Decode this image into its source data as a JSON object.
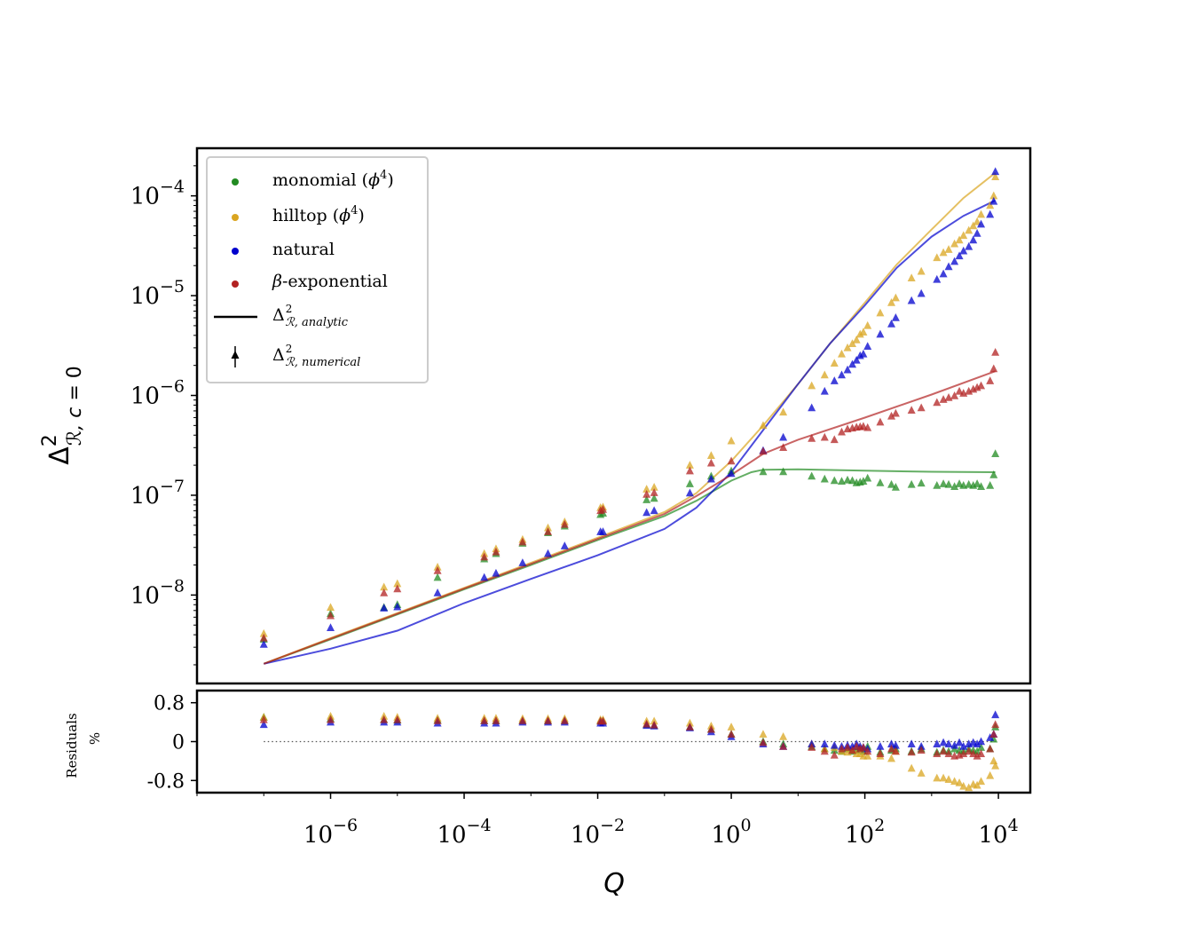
{
  "chart_data": [
    {
      "type": "scatter",
      "subtype": "log-log with analytic curves",
      "xlabel": "Q",
      "ylabel": "Δ²_{R, c=0}",
      "xscale": "log",
      "yscale": "log",
      "xlim": [
        1e-08,
        30000
      ],
      "ylim": [
        1.3e-09,
        0.0003
      ],
      "grid": false,
      "x_ticks": [
        {
          "value": 1e-06,
          "base": "10",
          "exp": "−6"
        },
        {
          "value": 0.0001,
          "base": "10",
          "exp": "−4"
        },
        {
          "value": 0.01,
          "base": "10",
          "exp": "−2"
        },
        {
          "value": 1,
          "base": "10",
          "exp": "0"
        },
        {
          "value": 100,
          "base": "10",
          "exp": "2"
        },
        {
          "value": 10000,
          "base": "10",
          "exp": "4"
        }
      ],
      "y_ticks": [
        {
          "value": 1e-08,
          "base": "10",
          "exp": "−8"
        },
        {
          "value": 1e-07,
          "base": "10",
          "exp": "−7"
        },
        {
          "value": 1e-06,
          "base": "10",
          "exp": "−6"
        },
        {
          "value": 1e-05,
          "base": "10",
          "exp": "−5"
        },
        {
          "value": 0.0001,
          "base": "10",
          "exp": "−4"
        }
      ],
      "legend": {
        "position": "top-left",
        "entries": [
          {
            "label": "monomial (",
            "math": "ϕ",
            "sup": "4",
            "close": ")",
            "marker": "dot",
            "color": "#228b22"
          },
          {
            "label": "hilltop (",
            "math": "ϕ",
            "sup": "4",
            "close": ")",
            "marker": "dot",
            "color": "#daa520"
          },
          {
            "label": "natural",
            "marker": "dot",
            "color": "#0000cd"
          },
          {
            "label": "-exponential",
            "math_prefix": "β",
            "marker": "dot",
            "color": "#b22222"
          },
          {
            "label": "Δ",
            "sup": "2",
            "sub": "ℛ, analytic",
            "marker": "line",
            "color": "#000000"
          },
          {
            "label": "Δ",
            "sup": "2",
            "sub": "ℛ, numerical",
            "marker": "triangle",
            "color": "#000000"
          }
        ]
      },
      "series": [
        {
          "name": "monomial (φ⁴)",
          "color": "#228b22",
          "analytic": {
            "x": [
              1e-07,
              1e-06,
              1e-05,
              0.0001,
              0.001,
              0.01,
              0.1,
              0.3,
              1,
              2,
              3,
              10,
              100,
              1000,
              9000
            ],
            "y": [
              2.05e-09,
              3.6e-09,
              6.4e-09,
              1.14e-08,
              2e-08,
              3.55e-08,
              6.2e-08,
              8.8e-08,
              1.4e-07,
              1.7e-07,
              1.8e-07,
              1.82e-07,
              1.76e-07,
              1.72e-07,
              1.7e-07
            ]
          },
          "numerical": {
            "x": [
              1e-07,
              1e-06,
              6.3e-06,
              1e-05,
              4e-05,
              0.0002,
              0.0003,
              0.00075,
              0.0018,
              0.0032,
              0.011,
              0.012,
              0.054,
              0.07,
              0.24,
              0.5,
              1,
              3,
              6,
              16,
              25,
              35,
              45,
              55,
              65,
              75,
              85,
              95,
              110,
              170,
              250,
              290,
              500,
              700,
              1200,
              1500,
              1800,
              2200,
              2600,
              3000,
              3600,
              4200,
              4800,
              5500,
              7500,
              8500,
              9000
            ],
            "y": [
              3.6e-09,
              6.5e-09,
              7.5e-09,
              8e-09,
              1.5e-08,
              2.3e-08,
              2.6e-08,
              3.3e-08,
              4.2e-08,
              4.9e-08,
              6.4e-08,
              6.6e-08,
              9e-08,
              9.3e-08,
              1.3e-07,
              1.55e-07,
              1.75e-07,
              1.72e-07,
              1.72e-07,
              1.55e-07,
              1.45e-07,
              1.4e-07,
              1.38e-07,
              1.42e-07,
              1.4e-07,
              1.33e-07,
              1.35e-07,
              1.38e-07,
              1.48e-07,
              1.33e-07,
              1.28e-07,
              1.2e-07,
              1.28e-07,
              1.32e-07,
              1.25e-07,
              1.3e-07,
              1.28e-07,
              1.22e-07,
              1.3e-07,
              1.25e-07,
              1.28e-07,
              1.25e-07,
              1.3e-07,
              1.22e-07,
              1.25e-07,
              1.6e-07,
              2.6e-07
            ]
          },
          "residuals_pct": [
            0.5,
            0.47,
            0.45,
            0.44,
            0.44,
            0.43,
            0.43,
            0.43,
            0.43,
            0.43,
            0.42,
            0.42,
            0.35,
            0.33,
            0.3,
            0.25,
            0.15,
            0,
            -0.05,
            -0.1,
            -0.15,
            -0.18,
            -0.2,
            -0.15,
            -0.2,
            -0.18,
            -0.15,
            -0.2,
            -0.1,
            -0.22,
            -0.18,
            -0.15,
            -0.2,
            -0.15,
            -0.22,
            -0.18,
            -0.2,
            -0.15,
            -0.18,
            -0.2,
            -0.15,
            -0.18,
            -0.2,
            -0.12,
            -0.15,
            0.05,
            0.3
          ]
        },
        {
          "name": "hilltop (φ⁴)",
          "color": "#daa520",
          "analytic": {
            "x": [
              1e-07,
              1e-06,
              1e-05,
              0.0001,
              0.001,
              0.01,
              0.1,
              0.3,
              1,
              3,
              10,
              30,
              100,
              300,
              1000,
              3000,
              9000
            ],
            "y": [
              2.05e-09,
              3.7e-09,
              6.6e-09,
              1.18e-08,
              2.1e-08,
              3.75e-08,
              6.8e-08,
              1.05e-07,
              2.2e-07,
              5e-07,
              1.3e-06,
              3.3e-06,
              8.5e-06,
              2.05e-05,
              4.6e-05,
              9.5e-05,
              0.00017
            ]
          },
          "numerical": {
            "x": [
              1e-07,
              1e-06,
              6.3e-06,
              1e-05,
              4e-05,
              0.0002,
              0.0003,
              0.00075,
              0.0018,
              0.0032,
              0.011,
              0.012,
              0.054,
              0.07,
              0.24,
              0.5,
              1,
              3,
              6,
              16,
              25,
              35,
              45,
              55,
              65,
              75,
              85,
              95,
              110,
              170,
              250,
              290,
              500,
              700,
              1200,
              1500,
              1800,
              2200,
              2600,
              3000,
              3600,
              4200,
              4800,
              5500,
              7500,
              8500,
              9000
            ],
            "y": [
              4.1e-09,
              7.5e-09,
              1.2e-08,
              1.3e-08,
              1.9e-08,
              2.6e-08,
              2.9e-08,
              3.6e-08,
              4.7e-08,
              5.4e-08,
              7.5e-08,
              7.6e-08,
              1.15e-07,
              1.2e-07,
              2e-07,
              2.5e-07,
              3.5e-07,
              5e-07,
              6.8e-07,
              1.25e-06,
              1.6e-06,
              2.1e-06,
              2.6e-06,
              3e-06,
              3.3e-06,
              3.6e-06,
              4.1e-06,
              4.3e-06,
              5e-06,
              6.7e-06,
              8.5e-06,
              9.5e-06,
              1.5e-05,
              1.75e-05,
              2.4e-05,
              2.7e-05,
              2.9e-05,
              3.3e-05,
              3.6e-05,
              4e-05,
              4.5e-05,
              5e-05,
              5.5e-05,
              6.5e-05,
              8e-05,
              0.0001,
              0.000155
            ]
          },
          "residuals_pct": [
            0.5,
            0.52,
            0.52,
            0.5,
            0.48,
            0.48,
            0.48,
            0.47,
            0.47,
            0.47,
            0.45,
            0.45,
            0.42,
            0.42,
            0.38,
            0.32,
            0.3,
            0.15,
            0.1,
            -0.05,
            -0.15,
            -0.12,
            -0.2,
            -0.22,
            -0.18,
            -0.25,
            -0.25,
            -0.3,
            -0.3,
            -0.3,
            -0.35,
            -0.2,
            -0.55,
            -0.65,
            -0.75,
            -0.75,
            -0.78,
            -0.82,
            -0.85,
            -0.92,
            -0.95,
            -0.88,
            -0.9,
            -0.82,
            -0.7,
            -0.4,
            -0.5
          ]
        },
        {
          "name": "natural",
          "color": "#0000cd",
          "analytic": {
            "x": [
              1e-07,
              1e-06,
              1e-05,
              0.0001,
              0.001,
              0.01,
              0.1,
              0.3,
              1,
              3,
              10,
              30,
              100,
              300,
              1000,
              3000,
              9000
            ],
            "y": [
              2.05e-09,
              2.9e-09,
              4.4e-09,
              8.3e-09,
              1.45e-08,
              2.5e-08,
              4.6e-08,
              7.5e-08,
              1.7e-07,
              4.5e-07,
              1.3e-06,
              3.3e-06,
              8e-06,
              1.9e-05,
              3.9e-05,
              6.3e-05,
              9e-05
            ]
          },
          "numerical": {
            "x": [
              1e-07,
              1e-06,
              6.3e-06,
              1e-05,
              4e-05,
              0.0002,
              0.0003,
              0.00075,
              0.0018,
              0.0032,
              0.011,
              0.012,
              0.054,
              0.07,
              0.24,
              0.5,
              1,
              3,
              6,
              16,
              25,
              35,
              45,
              55,
              65,
              75,
              85,
              95,
              110,
              170,
              250,
              290,
              500,
              700,
              1200,
              1500,
              1800,
              2200,
              2600,
              3000,
              3600,
              4200,
              4800,
              5500,
              7500,
              8500,
              9000
            ],
            "y": [
              3.2e-09,
              4.7e-09,
              7.4e-09,
              7.6e-09,
              1.05e-08,
              1.5e-08,
              1.65e-08,
              2.1e-08,
              2.6e-08,
              3.1e-08,
              4.3e-08,
              4.3e-08,
              6.7e-08,
              7e-08,
              1.05e-07,
              1.45e-07,
              1.65e-07,
              2.8e-07,
              3.8e-07,
              7.5e-07,
              1.1e-06,
              1.4e-06,
              1.6e-06,
              1.8e-06,
              2.05e-06,
              2.25e-06,
              2.5e-06,
              2.6e-06,
              3.1e-06,
              4.1e-06,
              5.2e-06,
              6e-06,
              8.9e-06,
              1.05e-05,
              1.45e-05,
              1.65e-05,
              1.95e-05,
              2.2e-05,
              2.5e-05,
              2.8e-05,
              3.1e-05,
              3.6e-05,
              4.2e-05,
              5.2e-05,
              6.5e-05,
              8.8e-05,
              0.000175
            ]
          },
          "residuals_pct": [
            0.35,
            0.4,
            0.4,
            0.4,
            0.38,
            0.38,
            0.38,
            0.4,
            0.4,
            0.4,
            0.38,
            0.38,
            0.33,
            0.32,
            0.28,
            0.2,
            0.1,
            -0.05,
            -0.1,
            -0.05,
            -0.05,
            -0.08,
            -0.1,
            -0.08,
            -0.1,
            -0.05,
            -0.1,
            -0.12,
            -0.15,
            -0.1,
            -0.05,
            -0.08,
            -0.05,
            -0.1,
            -0.05,
            -0.02,
            -0.05,
            -0.08,
            -0.02,
            -0.1,
            -0.05,
            -0.02,
            -0.05,
            0,
            0.08,
            0.15,
            0.55
          ]
        },
        {
          "name": "β-exponential",
          "color": "#b22222",
          "analytic": {
            "x": [
              1e-07,
              1e-06,
              1e-05,
              0.0001,
              0.001,
              0.01,
              0.1,
              0.3,
              1,
              3,
              10,
              100,
              1000,
              9000
            ],
            "y": [
              2.05e-09,
              3.65e-09,
              6.5e-09,
              1.16e-08,
              2.05e-08,
              3.65e-08,
              6.5e-08,
              9.8e-08,
              1.6e-07,
              2.6e-07,
              3.6e-07,
              6e-07,
              1.02e-06,
              1.75e-06
            ]
          },
          "numerical": {
            "x": [
              1e-07,
              1e-06,
              6.3e-06,
              1e-05,
              4e-05,
              0.0002,
              0.0003,
              0.00075,
              0.0018,
              0.0032,
              0.011,
              0.012,
              0.054,
              0.07,
              0.24,
              0.5,
              1,
              3,
              6,
              16,
              25,
              35,
              45,
              55,
              65,
              75,
              85,
              95,
              110,
              170,
              250,
              290,
              500,
              700,
              1200,
              1500,
              1800,
              2200,
              2600,
              3000,
              3600,
              4200,
              4800,
              5500,
              7500,
              8500,
              9000
            ],
            "y": [
              3.7e-09,
              6.2e-09,
              1.05e-08,
              1.15e-08,
              1.75e-08,
              2.4e-08,
              2.7e-08,
              3.4e-08,
              4.3e-08,
              5.1e-08,
              7e-08,
              7.2e-08,
              1.02e-07,
              1.06e-07,
              1.75e-07,
              2.1e-07,
              2.2e-07,
              2.75e-07,
              3e-07,
              3.7e-07,
              3.8e-07,
              3.6e-07,
              4.3e-07,
              4.6e-07,
              4.7e-07,
              4.8e-07,
              4.85e-07,
              4.9e-07,
              4.75e-07,
              5.4e-07,
              6.2e-07,
              6.6e-07,
              7.1e-07,
              7.5e-07,
              8.5e-07,
              9.1e-07,
              9.5e-07,
              9.9e-07,
              1.1e-06,
              1.05e-06,
              1.1e-06,
              1.15e-06,
              1.2e-06,
              1.25e-06,
              1.4e-06,
              1.85e-06,
              2.7e-06
            ]
          },
          "residuals_pct": [
            0.45,
            0.45,
            0.45,
            0.45,
            0.43,
            0.43,
            0.43,
            0.43,
            0.43,
            0.43,
            0.42,
            0.42,
            0.36,
            0.34,
            0.3,
            0.25,
            0.15,
            -0.02,
            -0.1,
            -0.12,
            -0.2,
            -0.28,
            -0.15,
            -0.12,
            -0.18,
            -0.1,
            -0.15,
            -0.12,
            -0.2,
            -0.25,
            -0.15,
            -0.2,
            -0.22,
            -0.18,
            -0.25,
            -0.2,
            -0.25,
            -0.3,
            -0.28,
            -0.25,
            -0.2,
            -0.25,
            -0.3,
            -0.25,
            -0.15,
            0.15,
            0.35
          ]
        }
      ]
    },
    {
      "type": "scatter",
      "panel": "residuals",
      "ylabel_line1": "Residuals",
      "ylabel_line2": "%",
      "ylim": [
        -1.05,
        1.05
      ],
      "y_ticks": [
        {
          "value": 0.8,
          "label": "0.8"
        },
        {
          "value": 0,
          "label": "0"
        },
        {
          "value": -0.8,
          "label": "-0.8"
        }
      ],
      "reference_line": {
        "y": 0,
        "style": "dotted"
      }
    }
  ]
}
